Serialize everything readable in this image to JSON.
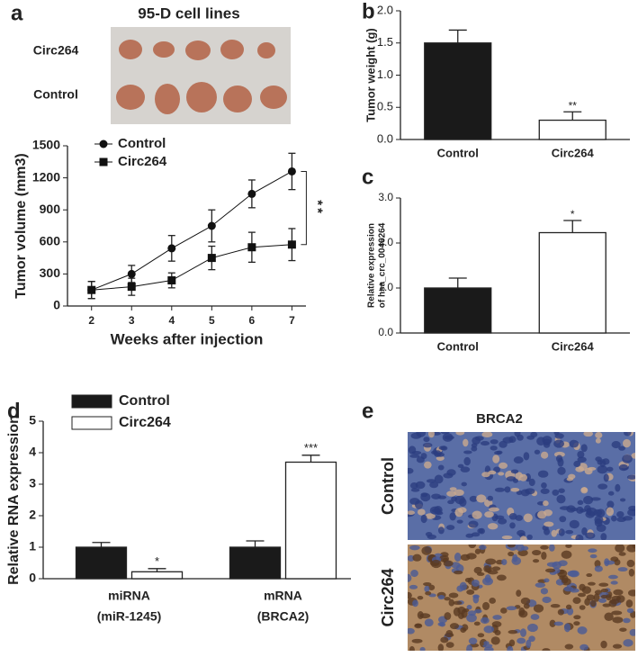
{
  "panel_letters": [
    "a",
    "b",
    "c",
    "d",
    "e"
  ],
  "photo_a": {
    "title": "95-D cell lines",
    "rows": [
      "Circ264",
      "Control"
    ]
  },
  "photo_e": {
    "title": "BRCA2",
    "rows": [
      "Control",
      "Circ264"
    ]
  },
  "chart_data": [
    {
      "type": "line",
      "xlabel": "Weeks after injection",
      "ylabel": [
        "Tumor volume (mm3)"
      ],
      "x": [
        2,
        3,
        4,
        5,
        6,
        7
      ],
      "xlim": [
        1.4,
        7.35
      ],
      "xticks": [
        2,
        3,
        4,
        5,
        6,
        7
      ],
      "ylim": [
        0,
        1500
      ],
      "yticks": [
        0,
        300,
        600,
        900,
        1200,
        1500
      ],
      "legend": "upper left",
      "series": [
        {
          "name": "Control",
          "color": "#111111",
          "marker": "circle",
          "values": [
            150,
            300,
            540,
            750,
            1050,
            1260
          ],
          "errors": [
            80,
            80,
            120,
            150,
            130,
            170
          ]
        },
        {
          "name": "Circ264",
          "color": "#111111",
          "marker": "square",
          "values": [
            150,
            180,
            240,
            450,
            550,
            575
          ],
          "errors": [
            80,
            80,
            70,
            110,
            140,
            150
          ]
        }
      ],
      "annotations": [
        "**"
      ]
    },
    {
      "type": "bar",
      "ylabel": [
        "Tumor weight (g)"
      ],
      "categories": [
        "Control",
        "Circ264"
      ],
      "values": [
        1.5,
        0.3
      ],
      "errors": [
        0.2,
        0.13
      ],
      "colors": [
        "#1a1a1a",
        "#ffffff"
      ],
      "value_annotations": [
        null,
        "**"
      ],
      "ylim": [
        0,
        2
      ],
      "yticks": [
        {
          "value": 0,
          "label": "0.0"
        },
        {
          "value": 0.5,
          "label": "0.5"
        },
        {
          "value": 1,
          "label": "1.0"
        },
        {
          "value": 1.5,
          "label": "1.5"
        },
        {
          "value": 2,
          "label": "2.0"
        }
      ]
    },
    {
      "type": "bar",
      "ylabel": [
        "Relative expression",
        "of hsa_crc_0046264"
      ],
      "categories": [
        "Control",
        "Circ264"
      ],
      "values": [
        1.0,
        2.23
      ],
      "errors": [
        0.22,
        0.27
      ],
      "colors": [
        "#1a1a1a",
        "#ffffff"
      ],
      "value_annotations": [
        null,
        "*"
      ],
      "ylim": [
        0,
        3
      ],
      "yticks": [
        {
          "value": 0,
          "label": "0.0"
        },
        {
          "value": 1,
          "label": "1.0"
        },
        {
          "value": 2,
          "label": "2.0"
        },
        {
          "value": 3,
          "label": "3.0"
        }
      ]
    },
    {
      "type": "grouped_bar",
      "ylabel": [
        "Relative RNA expression"
      ],
      "categories": [
        "miRNA",
        "mRNA"
      ],
      "category_sublabels": [
        "(miR-1245)",
        "(BRCA2)"
      ],
      "legend": "upper left",
      "ylim": [
        0,
        5
      ],
      "yticks": [
        0,
        1,
        2,
        3,
        4,
        5
      ],
      "series": [
        {
          "name": "Control",
          "color": "#1a1a1a",
          "values": [
            1,
            1
          ],
          "errors": [
            0.15,
            0.2
          ]
        },
        {
          "name": "Circ264",
          "color": "#ffffff",
          "values": [
            0.22,
            3.7
          ],
          "errors": [
            0.1,
            0.22
          ],
          "significance": [
            "*",
            "***"
          ]
        }
      ]
    }
  ]
}
